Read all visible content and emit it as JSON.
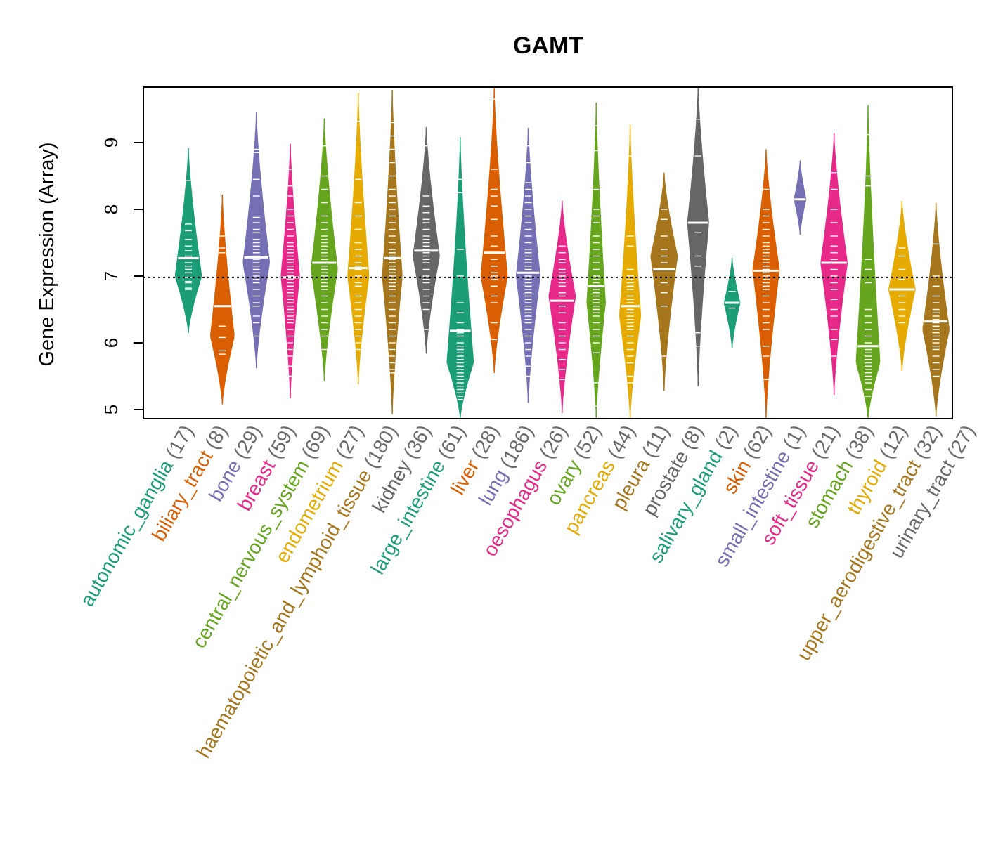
{
  "chart_data": {
    "type": "violin",
    "title": "GAMT",
    "xlabel": "",
    "ylabel": "Gene Expression (Array)",
    "ylim": [
      4.87,
      9.82
    ],
    "yticks": [
      5,
      6,
      7,
      8,
      9
    ],
    "reference_line": 6.98,
    "categories": [
      {
        "label": "autonomic_ganglia (17)",
        "color": "#1B9E77",
        "min": 6.15,
        "max": 8.92,
        "median": 7.27,
        "mode": 7.0,
        "width": 1.0,
        "points": [
          8.43,
          7.78,
          7.68,
          7.55,
          7.45,
          7.38,
          7.3,
          7.27,
          7.2,
          7.15,
          7.1,
          7.05,
          6.98,
          6.92,
          6.9,
          6.8,
          6.82
        ]
      },
      {
        "label": "biliary_tract (8)",
        "color": "#D95F02",
        "min": 5.08,
        "max": 8.22,
        "median": 6.55,
        "mode": 6.1,
        "width": 0.9,
        "points": [
          7.42,
          7.35,
          6.55,
          6.25,
          6.08,
          5.88,
          5.83,
          7.6
        ]
      },
      {
        "label": "bone (29)",
        "color": "#7570B3",
        "min": 5.62,
        "max": 9.45,
        "median": 7.28,
        "mode": 7.2,
        "width": 1.0,
        "points": [
          8.9,
          8.85,
          8.45,
          8.2,
          7.88,
          7.8,
          7.7,
          7.65,
          7.55,
          7.5,
          7.45,
          7.4,
          7.35,
          7.3,
          7.25,
          7.2,
          7.15,
          7.1,
          7.05,
          7.0,
          6.95,
          6.9,
          6.8,
          6.7,
          6.6,
          6.55,
          6.4,
          6.3,
          6.1
        ]
      },
      {
        "label": "breast (59)",
        "color": "#E7298A",
        "min": 5.17,
        "max": 8.98,
        "median": 6.98,
        "mode": 7.0,
        "width": 0.7,
        "points": [
          8.6,
          8.35,
          8.2,
          8.0,
          7.9,
          7.8,
          7.7,
          7.6,
          7.5,
          7.45,
          7.4,
          7.35,
          7.3,
          7.25,
          7.2,
          7.15,
          7.1,
          7.05,
          7.0,
          6.95,
          6.9,
          6.85,
          6.8,
          6.75,
          6.7,
          6.65,
          6.6,
          6.55,
          6.5,
          6.45,
          6.4,
          6.35,
          6.3,
          6.2,
          6.1,
          6.0,
          5.9,
          5.8,
          5.65,
          5.5
        ]
      },
      {
        "label": "central_nervous_system (69)",
        "color": "#66A61E",
        "min": 5.43,
        "max": 9.36,
        "median": 7.2,
        "mode": 7.1,
        "width": 1.0,
        "points": [
          8.95,
          8.5,
          8.3,
          8.1,
          7.9,
          7.8,
          7.7,
          7.6,
          7.55,
          7.5,
          7.45,
          7.4,
          7.35,
          7.3,
          7.25,
          7.2,
          7.15,
          7.1,
          7.05,
          7.0,
          6.95,
          6.9,
          6.85,
          6.8,
          6.7,
          6.6,
          6.5,
          6.4,
          6.3,
          6.2,
          6.1,
          5.9
        ]
      },
      {
        "label": "endometrium (27)",
        "color": "#E6AB02",
        "min": 5.38,
        "max": 9.75,
        "median": 7.12,
        "mode": 7.0,
        "width": 0.8,
        "points": [
          9.32,
          8.45,
          8.1,
          7.9,
          7.7,
          7.5,
          7.4,
          7.3,
          7.2,
          7.15,
          7.1,
          7.0,
          6.9,
          6.85,
          6.7,
          6.6,
          6.5,
          6.4,
          6.3,
          6.2,
          6.1,
          6.0,
          5.9
        ]
      },
      {
        "label": "haematopoietic_and_lymphoid_tissue (180)",
        "color": "#A6761D",
        "min": 4.93,
        "max": 9.79,
        "median": 7.27,
        "mode": 7.0,
        "width": 0.75,
        "points": [
          9.3,
          9.1,
          8.9,
          8.7,
          8.5,
          8.3,
          8.2,
          8.1,
          8.0,
          7.9,
          7.8,
          7.7,
          7.6,
          7.5,
          7.4,
          7.35,
          7.3,
          7.25,
          7.2,
          7.15,
          7.1,
          7.05,
          7.0,
          6.95,
          6.9,
          6.85,
          6.8,
          6.7,
          6.6,
          6.5,
          6.4,
          6.3,
          6.2,
          6.1,
          6.0,
          5.9,
          5.8,
          5.7,
          5.6,
          5.55
        ]
      },
      {
        "label": "kidney (36)",
        "color": "#666666",
        "min": 5.84,
        "max": 9.23,
        "median": 7.38,
        "mode": 7.3,
        "width": 1.0,
        "points": [
          8.95,
          8.2,
          8.05,
          7.95,
          7.85,
          7.8,
          7.7,
          7.6,
          7.55,
          7.5,
          7.45,
          7.4,
          7.35,
          7.3,
          7.25,
          7.2,
          7.1,
          7.0,
          6.95,
          6.9,
          6.8,
          6.7,
          6.6,
          6.5,
          6.2
        ]
      },
      {
        "label": "large_intestine (61)",
        "color": "#1B9E77",
        "min": 4.87,
        "max": 9.08,
        "median": 6.18,
        "mode": 5.7,
        "width": 1.0,
        "points": [
          8.45,
          8.25,
          7.4,
          7.0,
          6.6,
          6.45,
          6.3,
          6.2,
          6.15,
          6.1,
          6.0,
          5.95,
          5.9,
          5.85,
          5.8,
          5.75,
          5.7,
          5.65,
          5.6,
          5.55,
          5.5,
          5.45,
          5.4,
          5.35,
          5.3,
          5.25,
          5.2,
          5.15
        ]
      },
      {
        "label": "liver (28)",
        "color": "#D95F02",
        "min": 5.55,
        "max": 9.82,
        "median": 7.35,
        "mode": 7.0,
        "width": 1.0,
        "points": [
          9.65,
          8.6,
          8.3,
          8.2,
          8.05,
          7.85,
          7.6,
          7.45,
          7.35,
          7.25,
          7.15,
          7.05,
          7.0,
          6.95,
          6.85,
          6.7,
          6.6,
          6.3,
          6.05
        ]
      },
      {
        "label": "lung (186)",
        "color": "#7570B3",
        "min": 5.1,
        "max": 9.22,
        "median": 7.05,
        "mode": 7.0,
        "width": 0.9,
        "points": [
          8.95,
          8.7,
          8.4,
          8.3,
          8.2,
          8.1,
          8.0,
          7.9,
          7.8,
          7.7,
          7.6,
          7.5,
          7.4,
          7.35,
          7.3,
          7.25,
          7.2,
          7.15,
          7.1,
          7.05,
          7.0,
          6.95,
          6.9,
          6.85,
          6.8,
          6.75,
          6.7,
          6.65,
          6.6,
          6.55,
          6.5,
          6.45,
          6.4,
          6.35,
          6.3,
          6.2,
          6.1,
          6.0,
          5.9,
          5.8,
          5.65,
          5.5
        ]
      },
      {
        "label": "oesophagus (26)",
        "color": "#E7298A",
        "min": 4.95,
        "max": 8.13,
        "median": 6.63,
        "mode": 6.7,
        "width": 1.0,
        "points": [
          7.45,
          7.35,
          7.25,
          7.2,
          7.1,
          7.05,
          7.0,
          6.95,
          6.9,
          6.85,
          6.75,
          6.7,
          6.63,
          6.55,
          6.45,
          6.3,
          6.2,
          6.1,
          6.0,
          5.9,
          5.75,
          5.6,
          5.45
        ]
      },
      {
        "label": "ovary (52)",
        "color": "#66A61E",
        "min": 4.87,
        "max": 9.6,
        "median": 6.85,
        "mode": 6.6,
        "width": 0.7,
        "points": [
          9.25,
          8.88,
          8.3,
          8.0,
          7.9,
          7.8,
          7.6,
          7.5,
          7.4,
          7.3,
          7.2,
          7.1,
          7.0,
          6.95,
          6.9,
          6.85,
          6.8,
          6.75,
          6.7,
          6.65,
          6.6,
          6.55,
          6.5,
          6.45,
          6.4,
          6.3,
          6.2,
          6.1,
          6.0,
          5.85,
          5.4,
          5.05
        ]
      },
      {
        "label": "pancreas (44)",
        "color": "#E6AB02",
        "min": 4.87,
        "max": 9.27,
        "median": 6.55,
        "mode": 6.4,
        "width": 0.8,
        "points": [
          8.8,
          7.6,
          7.45,
          7.1,
          7.0,
          6.95,
          6.9,
          6.85,
          6.8,
          6.7,
          6.65,
          6.6,
          6.55,
          6.5,
          6.45,
          6.4,
          6.35,
          6.3,
          6.25,
          6.2,
          6.1,
          6.0,
          5.9,
          5.8,
          5.7,
          5.5,
          5.4
        ]
      },
      {
        "label": "pleura (11)",
        "color": "#A6761D",
        "min": 5.28,
        "max": 8.55,
        "median": 7.1,
        "mode": 7.3,
        "width": 1.0,
        "points": [
          8.0,
          7.85,
          7.6,
          7.4,
          7.3,
          7.2,
          7.1,
          6.9,
          6.75,
          6.55,
          5.8
        ]
      },
      {
        "label": "prostate (8)",
        "color": "#666666",
        "min": 5.35,
        "max": 9.85,
        "median": 7.8,
        "mode": 7.8,
        "width": 0.8,
        "points": [
          9.35,
          8.8,
          7.8,
          7.65,
          7.3,
          7.15,
          6.15,
          5.95
        ]
      },
      {
        "label": "salivary_gland (2)",
        "color": "#1B9E77",
        "min": 5.92,
        "max": 7.27,
        "median": 6.6,
        "mode": 6.6,
        "width": 0.6,
        "points": [
          6.77,
          6.52
        ]
      },
      {
        "label": "skin (62)",
        "color": "#D95F02",
        "min": 4.87,
        "max": 8.9,
        "median": 7.08,
        "mode": 7.1,
        "width": 1.0,
        "points": [
          8.3,
          8.0,
          7.9,
          7.8,
          7.7,
          7.6,
          7.5,
          7.45,
          7.4,
          7.35,
          7.3,
          7.25,
          7.2,
          7.15,
          7.1,
          7.05,
          7.0,
          6.95,
          6.9,
          6.85,
          6.8,
          6.7,
          6.6,
          6.5,
          6.4,
          6.3,
          6.2,
          5.95,
          5.8,
          5.45
        ]
      },
      {
        "label": "small_intestine (1)",
        "color": "#7570B3",
        "min": 7.62,
        "max": 8.73,
        "median": 8.15,
        "mode": 8.15,
        "width": 0.45,
        "points": [
          8.15
        ]
      },
      {
        "label": "soft_tissue (21)",
        "color": "#E7298A",
        "min": 5.22,
        "max": 9.14,
        "median": 7.2,
        "mode": 7.2,
        "width": 1.0,
        "points": [
          8.55,
          8.3,
          8.0,
          7.8,
          7.6,
          7.45,
          7.35,
          7.25,
          7.2,
          7.1,
          7.0,
          6.9,
          6.8,
          6.65,
          6.5,
          6.4,
          6.2,
          6.05,
          5.8
        ]
      },
      {
        "label": "stomach (38)",
        "color": "#66A61E",
        "min": 4.87,
        "max": 9.56,
        "median": 5.95,
        "mode": 5.7,
        "width": 0.9,
        "points": [
          9.12,
          8.5,
          8.35,
          7.25,
          7.1,
          6.9,
          6.5,
          6.4,
          6.3,
          6.2,
          6.1,
          6.0,
          5.95,
          5.9,
          5.85,
          5.8,
          5.75,
          5.7,
          5.65,
          5.6,
          5.55,
          5.5,
          5.45,
          5.4,
          5.3,
          5.2
        ]
      },
      {
        "label": "thyroid (12)",
        "color": "#E6AB02",
        "min": 5.58,
        "max": 8.12,
        "median": 6.8,
        "mode": 6.8,
        "width": 1.0,
        "points": [
          7.42,
          7.3,
          7.1,
          6.95,
          6.8,
          6.7,
          6.6,
          6.5,
          6.4,
          6.3
        ]
      },
      {
        "label": "upper_aerodigestive_tract (32)",
        "color": "#A6761D",
        "min": 4.9,
        "max": 8.1,
        "median": 6.32,
        "mode": 6.2,
        "width": 1.0,
        "points": [
          7.48,
          7.0,
          6.85,
          6.7,
          6.6,
          6.5,
          6.45,
          6.4,
          6.35,
          6.3,
          6.25,
          6.2,
          6.15,
          6.1,
          6.05,
          6.0,
          5.95,
          5.9,
          5.8,
          5.7,
          5.6,
          5.5
        ]
      },
      {
        "label": "urinary_tract (27)",
        "color": "#666666",
        "min": 5.02,
        "max": 7.95,
        "median": 6.35,
        "mode": 6.1,
        "width": 1.0,
        "points": [
          7.38,
          7.2,
          7.1,
          7.0,
          6.9,
          6.8,
          6.65,
          6.5,
          6.4,
          6.3,
          6.2,
          6.15,
          6.1,
          6.05,
          6.0,
          5.95,
          5.9,
          5.8,
          5.75,
          5.45
        ]
      }
    ]
  }
}
